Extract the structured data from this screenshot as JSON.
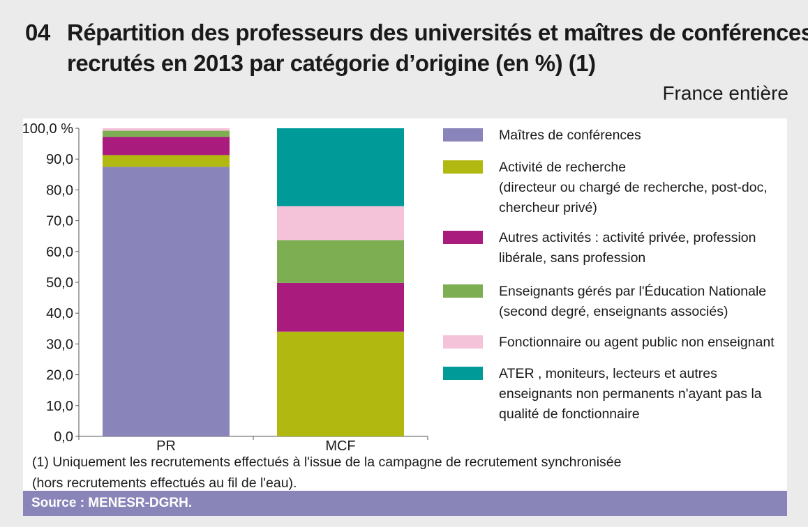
{
  "header": {
    "number": "04",
    "title_line1": "Répartition des professeurs des universités et maîtres de conférences",
    "title_line2": "recrutés en 2013 par catégorie d’origine (en %) (1)",
    "subtitle": "France entière"
  },
  "chart_data": {
    "type": "bar",
    "stacked": true,
    "title": "Répartition des professeurs des universités et maîtres de conférences recrutés en 2013 par catégorie d’origine (en %) (1)",
    "categories": [
      "PR",
      "MCF"
    ],
    "ylim": [
      0,
      100
    ],
    "yticks": [
      0,
      10,
      20,
      30,
      40,
      50,
      60,
      70,
      80,
      90,
      100
    ],
    "ytick_labels": [
      "0,0",
      "10,0",
      "20,0",
      "30,0",
      "40,0",
      "50,0",
      "60,0",
      "70,0",
      "80,0",
      "90,0",
      "100,0 %"
    ],
    "xlabel": "",
    "ylabel": "",
    "grid": false,
    "legend_position": "right",
    "series": [
      {
        "name": "Maîtres de conférences",
        "color": "#8985bb",
        "values": [
          87.5,
          0
        ]
      },
      {
        "name": "Activité de recherche\n(directeur ou  chargé de recherche, post-doc,\nchercheur privé)",
        "color": "#b1b80f",
        "values": [
          3.8,
          34.0
        ]
      },
      {
        "name": "Autres activités :  activité privée, profession\nlibérale,  sans profession",
        "color": "#aa1b7e",
        "values": [
          5.9,
          15.8
        ]
      },
      {
        "name": "Enseignants gérés par l'Éducation Nationale\n(second degré, enseignants associés)",
        "color": "#7daf52",
        "values": [
          2.0,
          13.9
        ]
      },
      {
        "name": "Fonctionnaire ou agent public non enseignant",
        "color": "#f4c3da",
        "values": [
          0.8,
          11.0
        ]
      },
      {
        "name": "ATER , moniteurs, lecteurs et autres\nenseignants non permanents n'ayant pas la\nqualité de fonctionnaire",
        "color": "#009b98",
        "values": [
          0,
          25.3
        ]
      }
    ]
  },
  "footnote": "(1) Uniquement les recrutements effectués à l'issue de la campagne de recrutement synchronisée\n(hors recrutements effectués au fil de l'eau).",
  "source": "Source : MENESR-DGRH."
}
